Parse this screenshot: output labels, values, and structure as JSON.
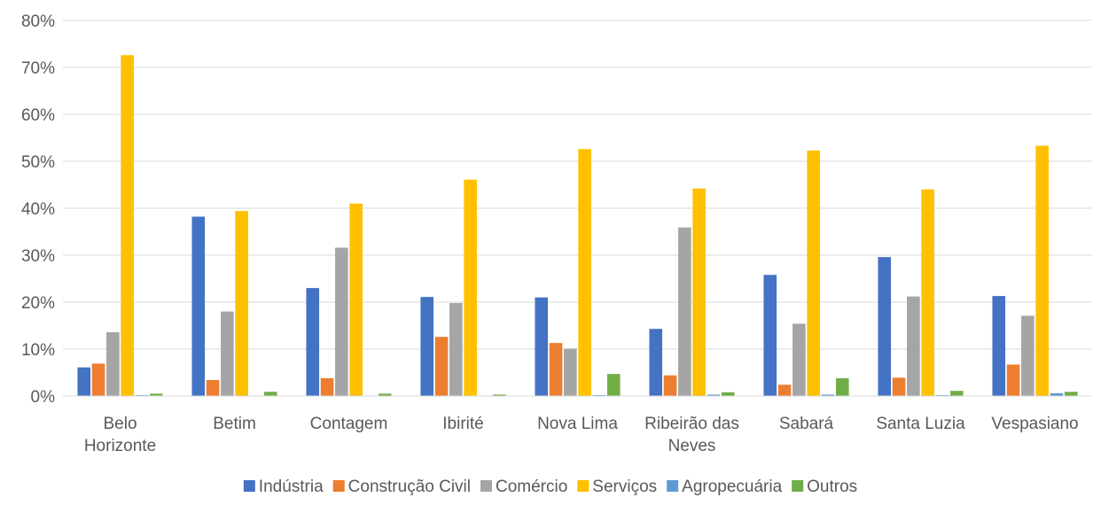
{
  "chart_data": {
    "type": "bar",
    "categories": [
      [
        "Belo",
        "Horizonte"
      ],
      [
        "Betim"
      ],
      [
        "Contagem"
      ],
      [
        "Ibirité"
      ],
      [
        "Nova Lima"
      ],
      [
        "Ribeirão das",
        "Neves"
      ],
      [
        "Sabará"
      ],
      [
        "Santa Luzia"
      ],
      [
        "Vespasiano"
      ]
    ],
    "series": [
      {
        "name": "Indústria",
        "color": "#4472c4",
        "values": [
          6.1,
          38.2,
          23.0,
          21.1,
          21.0,
          14.3,
          25.8,
          29.6,
          21.3
        ]
      },
      {
        "name": "Construção Civil",
        "color": "#ed7d31",
        "values": [
          6.9,
          3.4,
          3.8,
          12.6,
          11.3,
          4.4,
          2.4,
          3.9,
          6.7
        ]
      },
      {
        "name": "Comércio",
        "color": "#a5a5a5",
        "values": [
          13.6,
          18.0,
          31.6,
          19.8,
          10.1,
          35.9,
          15.4,
          21.2,
          17.1
        ]
      },
      {
        "name": "Serviços",
        "color": "#ffc000",
        "values": [
          72.6,
          39.4,
          41.0,
          46.1,
          52.6,
          44.2,
          52.3,
          44.0,
          53.3
        ]
      },
      {
        "name": "Agropecuária",
        "color": "#5b9bd5",
        "values": [
          0.2,
          0.1,
          0.1,
          0.1,
          0.2,
          0.3,
          0.3,
          0.2,
          0.6
        ]
      },
      {
        "name": "Outros",
        "color": "#70ad47",
        "values": [
          0.5,
          0.9,
          0.5,
          0.3,
          4.7,
          0.8,
          3.8,
          1.1,
          0.9
        ]
      }
    ],
    "yticks": [
      "0%",
      "10%",
      "20%",
      "30%",
      "40%",
      "50%",
      "60%",
      "70%",
      "80%"
    ],
    "ylim": [
      0,
      80
    ],
    "grid": true,
    "legend_position": "bottom",
    "title": "",
    "xlabel": "",
    "ylabel": ""
  }
}
